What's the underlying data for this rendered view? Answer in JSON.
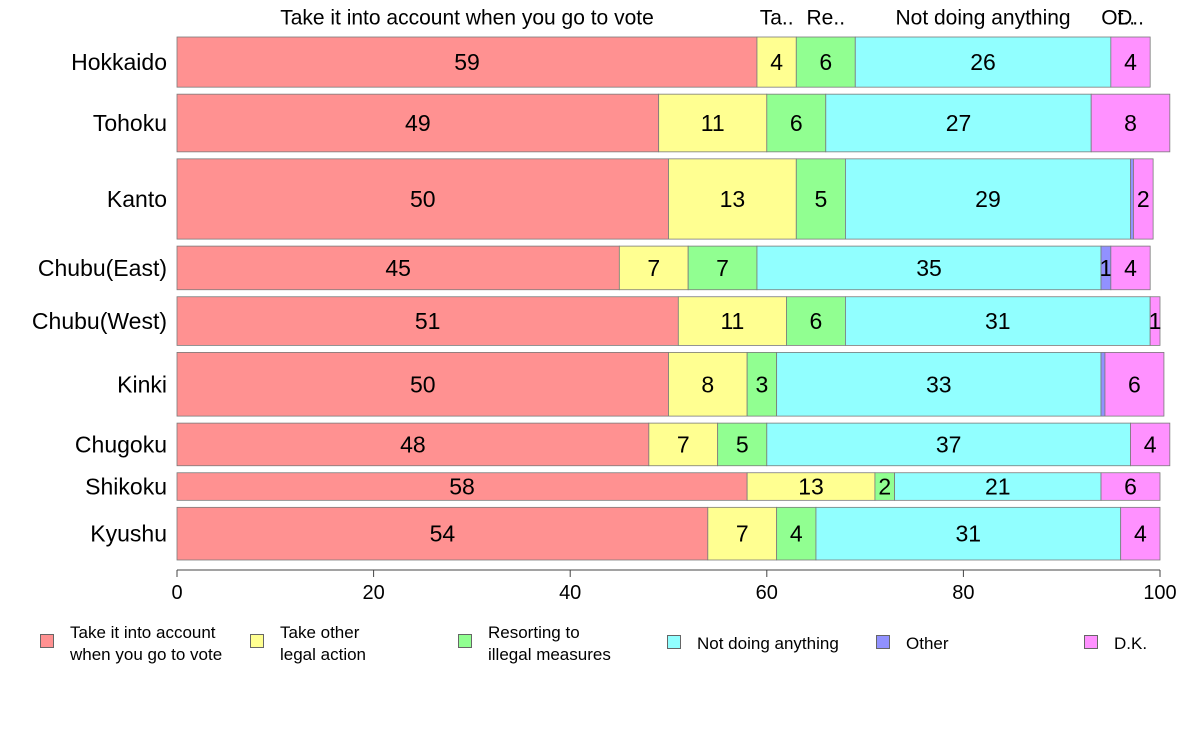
{
  "chart_data": {
    "type": "bar",
    "orientation": "horizontal",
    "stacked": true,
    "categories": [
      "Hokkaido",
      "Tohoku",
      "Kanto",
      "Chubu(East)",
      "Chubu(West)",
      "Kinki",
      "Chugoku",
      "Shikoku",
      "Kyushu"
    ],
    "series": [
      {
        "name": "Take it into account when you go to vote",
        "short_label": "Take it into account when you go to vote",
        "color": "#ff9191",
        "values": [
          59,
          49,
          50,
          45,
          51,
          50,
          48,
          58,
          54
        ]
      },
      {
        "name": "Take other legal action",
        "short_label": "Ta..",
        "color": "#ffff91",
        "values": [
          4,
          11,
          13,
          7,
          11,
          8,
          7,
          13,
          7
        ]
      },
      {
        "name": "Resorting to illegal measures",
        "short_label": "Re..",
        "color": "#91ff91",
        "values": [
          6,
          6,
          5,
          7,
          6,
          3,
          5,
          2,
          4
        ]
      },
      {
        "name": "Not doing anything",
        "short_label": "Not doing anything",
        "color": "#91ffff",
        "values": [
          26,
          27,
          29,
          35,
          31,
          33,
          37,
          21,
          31
        ]
      },
      {
        "name": "Other",
        "short_label": "Ot..",
        "color": "#9191ff",
        "values": [
          0,
          0,
          0.3,
          1,
          0,
          0.4,
          0,
          0,
          0
        ]
      },
      {
        "name": "D.K.",
        "short_label": "D..",
        "color": "#ff91ff",
        "values": [
          4,
          8,
          2,
          4,
          1,
          6,
          4,
          6,
          4
        ]
      }
    ],
    "data_labels": [
      [
        "59",
        "4",
        "6",
        "26",
        "",
        "4"
      ],
      [
        "49",
        "11",
        "6",
        "27",
        "",
        "8"
      ],
      [
        "50",
        "13",
        "5",
        "29",
        "",
        "2"
      ],
      [
        "45",
        "7",
        "7",
        "35",
        "1",
        "4"
      ],
      [
        "51",
        "11",
        "6",
        "31",
        "",
        "1"
      ],
      [
        "50",
        "8",
        "3",
        "33",
        "",
        "6"
      ],
      [
        "48",
        "7",
        "5",
        "37",
        "",
        "4"
      ],
      [
        "58",
        "13",
        "2",
        "21",
        "",
        "6"
      ],
      [
        "54",
        "7",
        "4",
        "31",
        "",
        "4"
      ]
    ],
    "row_weights": [
      1,
      1.15,
      1.6,
      0.87,
      0.97,
      1.27,
      0.85,
      0.55,
      1.05
    ],
    "xlim": [
      0,
      100
    ],
    "xticks": [
      0,
      20,
      40,
      60,
      80,
      100
    ],
    "xlabel": "",
    "ylabel": "",
    "title": "",
    "grid": false,
    "legend_position": "bottom",
    "legend": [
      {
        "label": "Take it into account\nwhen you go to vote",
        "color": "#ff9191"
      },
      {
        "label": "Take other\nlegal action",
        "color": "#ffff91"
      },
      {
        "label": "Resorting to\nillegal measures",
        "color": "#91ff91"
      },
      {
        "label": "Not doing anything",
        "color": "#91ffff"
      },
      {
        "label": "Other",
        "color": "#9191ff"
      },
      {
        "label": "D.K.",
        "color": "#ff91ff"
      }
    ]
  }
}
